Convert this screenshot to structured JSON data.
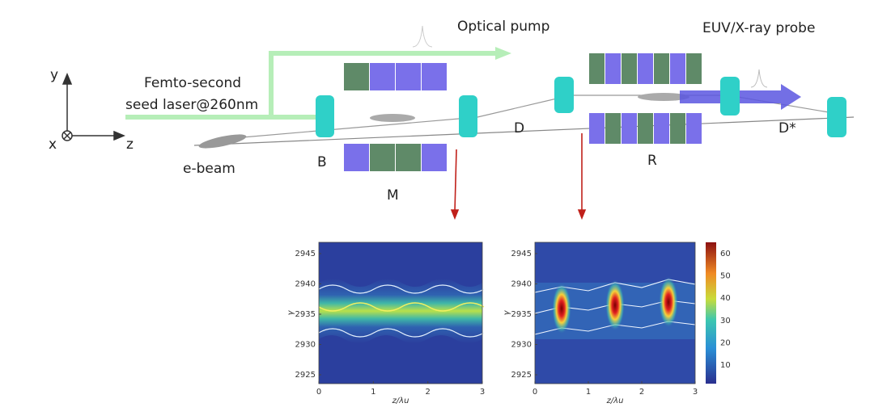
{
  "labels": {
    "optical_pump": "Optical pump",
    "probe": "EUV/X-ray probe",
    "seed_1": "Femto-second",
    "seed_2": "seed laser@260nm",
    "ebeam": "e-beam",
    "b": "B",
    "m": "M",
    "d": "D",
    "r": "R",
    "d_star": "D*"
  },
  "axes_icon": {
    "x": "x",
    "y": "y",
    "z": "z"
  },
  "plots": [
    {
      "xlabel": "z/λu",
      "ylabel": "γ",
      "xticks": [
        0,
        1,
        2,
        3
      ],
      "yticks": [
        2945,
        2940,
        2935,
        2930,
        2925
      ]
    },
    {
      "xlabel": "z/λu",
      "ylabel": "γ",
      "xticks": [
        0,
        1,
        2,
        3
      ],
      "yticks": [
        2945,
        2940,
        2935,
        2930,
        2925
      ],
      "colorbar_ticks": [
        60,
        50,
        40,
        30,
        20,
        10
      ]
    }
  ]
}
